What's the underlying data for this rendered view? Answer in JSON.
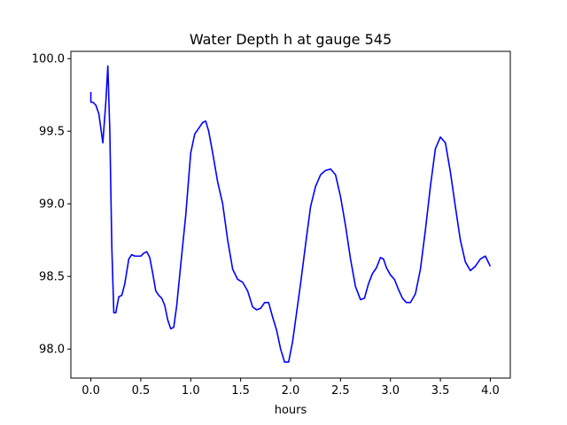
{
  "chart_data": {
    "type": "line",
    "title": "Water Depth h at gauge 545",
    "xlabel": "hours",
    "ylabel": "",
    "xlim": [
      -0.2,
      4.2
    ],
    "ylim": [
      97.8,
      100.05
    ],
    "xticks": [
      0.0,
      0.5,
      1.0,
      1.5,
      2.0,
      2.5,
      3.0,
      3.5,
      4.0
    ],
    "xtick_labels": [
      "0.0",
      "0.5",
      "1.0",
      "1.5",
      "2.0",
      "2.5",
      "3.0",
      "3.5",
      "4.0"
    ],
    "yticks": [
      98.0,
      98.5,
      99.0,
      99.5,
      100.0
    ],
    "ytick_labels": [
      "98.0",
      "98.5",
      "99.0",
      "99.5",
      "100.0"
    ],
    "grid": false,
    "series": [
      {
        "color": "#0000ff",
        "x": [
          0.0,
          0.0,
          0.02,
          0.05,
          0.08,
          0.12,
          0.15,
          0.17,
          0.19,
          0.21,
          0.23,
          0.25,
          0.28,
          0.31,
          0.34,
          0.38,
          0.41,
          0.44,
          0.47,
          0.5,
          0.53,
          0.56,
          0.59,
          0.62,
          0.65,
          0.68,
          0.71,
          0.74,
          0.77,
          0.8,
          0.83,
          0.86,
          0.9,
          0.95,
          1.0,
          1.04,
          1.08,
          1.12,
          1.15,
          1.18,
          1.22,
          1.27,
          1.32,
          1.37,
          1.42,
          1.47,
          1.52,
          1.57,
          1.62,
          1.66,
          1.7,
          1.74,
          1.78,
          1.82,
          1.86,
          1.9,
          1.94,
          1.98,
          2.02,
          2.06,
          2.1,
          2.15,
          2.2,
          2.25,
          2.3,
          2.35,
          2.4,
          2.45,
          2.5,
          2.55,
          2.6,
          2.65,
          2.7,
          2.74,
          2.78,
          2.82,
          2.86,
          2.9,
          2.93,
          2.96,
          3.0,
          3.04,
          3.08,
          3.12,
          3.16,
          3.2,
          3.25,
          3.3,
          3.35,
          3.4,
          3.45,
          3.5,
          3.55,
          3.6,
          3.65,
          3.7,
          3.75,
          3.8,
          3.85,
          3.9,
          3.95,
          4.0
        ],
        "y": [
          99.77,
          99.7,
          99.7,
          99.68,
          99.62,
          99.42,
          99.7,
          99.95,
          99.5,
          98.7,
          98.25,
          98.25,
          98.36,
          98.37,
          98.45,
          98.62,
          98.65,
          98.64,
          98.64,
          98.64,
          98.66,
          98.67,
          98.63,
          98.52,
          98.4,
          98.37,
          98.35,
          98.3,
          98.2,
          98.14,
          98.15,
          98.3,
          98.58,
          98.92,
          99.35,
          99.48,
          99.52,
          99.56,
          99.57,
          99.5,
          99.35,
          99.15,
          99.0,
          98.75,
          98.55,
          98.48,
          98.46,
          98.4,
          98.29,
          98.27,
          98.28,
          98.32,
          98.32,
          98.22,
          98.13,
          98.0,
          97.91,
          97.91,
          98.05,
          98.25,
          98.45,
          98.72,
          98.98,
          99.12,
          99.2,
          99.23,
          99.24,
          99.2,
          99.05,
          98.85,
          98.62,
          98.43,
          98.34,
          98.35,
          98.45,
          98.52,
          98.56,
          98.63,
          98.62,
          98.56,
          98.51,
          98.48,
          98.41,
          98.35,
          98.32,
          98.32,
          98.38,
          98.55,
          98.82,
          99.12,
          99.38,
          99.46,
          99.42,
          99.22,
          98.98,
          98.75,
          98.6,
          98.54,
          98.57,
          98.62,
          98.64,
          98.57
        ]
      }
    ]
  }
}
